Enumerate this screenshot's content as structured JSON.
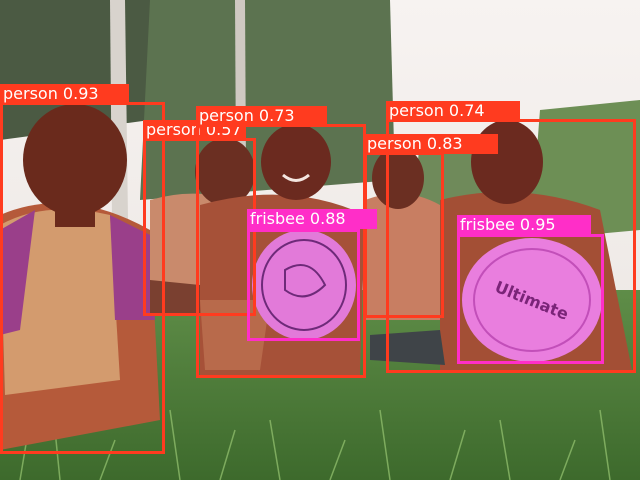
{
  "colors": {
    "person": "#ff3b1f",
    "frisbee": "#ff2ec8"
  },
  "detections": [
    {
      "class": "person",
      "label": "person 0.93"
    },
    {
      "class": "person",
      "label": "person 0.57"
    },
    {
      "class": "person",
      "label": "person 0.73"
    },
    {
      "class": "person",
      "label": "person 0.74"
    },
    {
      "class": "person",
      "label": "person 0.83"
    },
    {
      "class": "frisbee",
      "label": "frisbee 0.88"
    },
    {
      "class": "frisbee",
      "label": "frisbee 0.95"
    }
  ],
  "frisbee_brand": "Ultimate"
}
